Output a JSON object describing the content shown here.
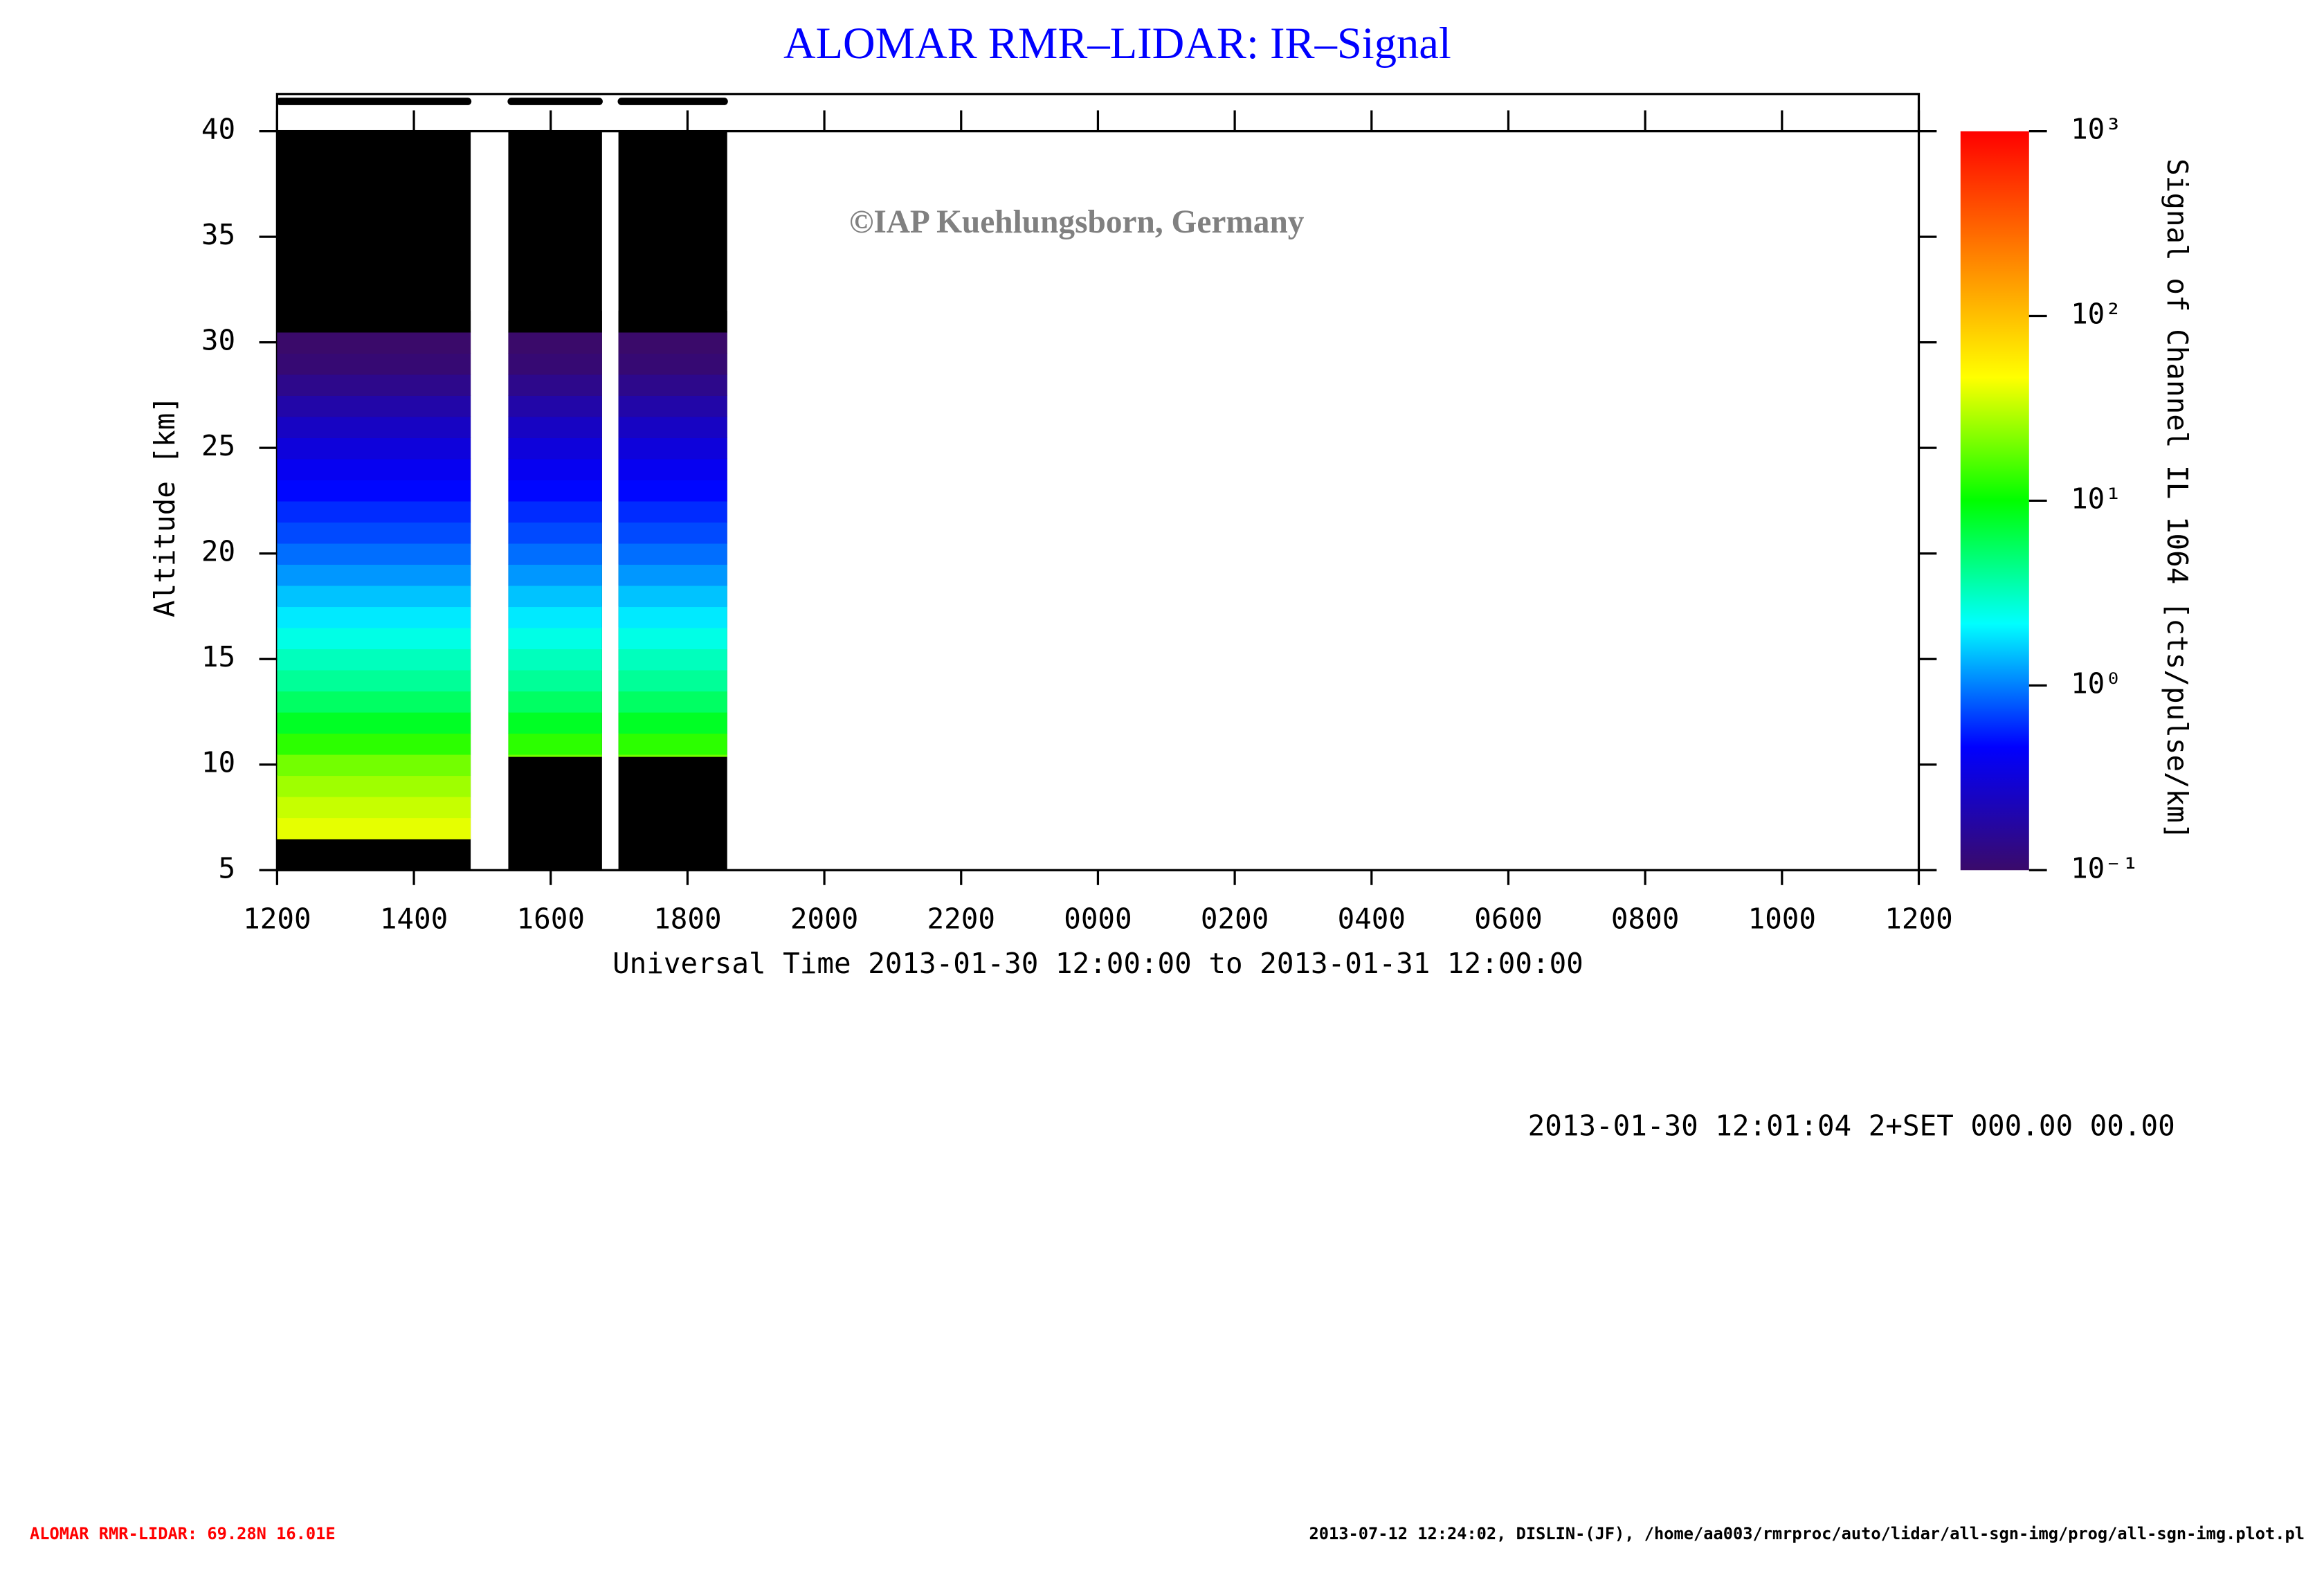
{
  "chart_data": {
    "type": "heatmap",
    "title": "ALOMAR RMR–LIDAR: IR–Signal",
    "watermark": "©IAP Kuehlungsborn, Germany",
    "x_label": "Universal Time 2013-01-30 12:00:00 to 2013-01-31 12:00:00",
    "y_label": "Altitude [km]",
    "colorbar_label": "Signal of Channel IL 1064 [cts/pulse/km]",
    "info": "2013-01-30 12:01:04 2+SET 000.00 00.00",
    "footer_left": "ALOMAR RMR-LIDAR: 69.28N 16.01E",
    "footer_right": "2013-07-12 12:24:02, DISLIN-(JF), /home/aa003/rmrproc/auto/lidar/all-sgn-img/prog/all-sgn-img.plot.pl",
    "xlim": [
      0,
      24
    ],
    "xticks": [
      {
        "value": 0,
        "label": "1200"
      },
      {
        "value": 2,
        "label": "1400"
      },
      {
        "value": 4,
        "label": "1600"
      },
      {
        "value": 6,
        "label": "1800"
      },
      {
        "value": 8,
        "label": "2000"
      },
      {
        "value": 10,
        "label": "2200"
      },
      {
        "value": 12,
        "label": "0000"
      },
      {
        "value": 14,
        "label": "0200"
      },
      {
        "value": 16,
        "label": "0400"
      },
      {
        "value": 18,
        "label": "0600"
      },
      {
        "value": 20,
        "label": "0800"
      },
      {
        "value": 22,
        "label": "1000"
      },
      {
        "value": 24,
        "label": "1200"
      }
    ],
    "ylim": [
      5,
      40
    ],
    "yticks": [
      5,
      10,
      15,
      20,
      25,
      30,
      35,
      40
    ],
    "clim": [
      0.1,
      1000
    ],
    "log_color_scale": true,
    "cticks": [
      {
        "value": 0.1,
        "label": "10⁻¹"
      },
      {
        "value": 1,
        "label": "10⁰"
      },
      {
        "value": 10,
        "label": "10¹"
      },
      {
        "value": 100,
        "label": "10²"
      },
      {
        "value": 1000,
        "label": "10³"
      }
    ],
    "colormap": [
      "#3a0a6a",
      "#0000ff",
      "#00ffff",
      "#00ff00",
      "#ffff00",
      "#ff8000",
      "#ff0000"
    ],
    "segments": [
      {
        "start": 0,
        "end": 2.83,
        "lower_limit": 6.5
      },
      {
        "start": 3.38,
        "end": 4.75,
        "lower_limit": 10.4
      },
      {
        "start": 4.99,
        "end": 6.58,
        "lower_limit": 10.4
      }
    ],
    "altitude": [
      6,
      7,
      8,
      9,
      10,
      11,
      12,
      13,
      14,
      15,
      16,
      17,
      18,
      19,
      20,
      21,
      22,
      23,
      24,
      25,
      26,
      27,
      28,
      29,
      30,
      31
    ],
    "signal": [
      45,
      40,
      33,
      26,
      20,
      13,
      8,
      5.5,
      4,
      3.2,
      2.5,
      1.9,
      1.5,
      1.15,
      0.9,
      0.72,
      0.6,
      0.48,
      0.4,
      0.32,
      0.25,
      0.19,
      0.14,
      0.11,
      0.1,
      0.08
    ]
  }
}
